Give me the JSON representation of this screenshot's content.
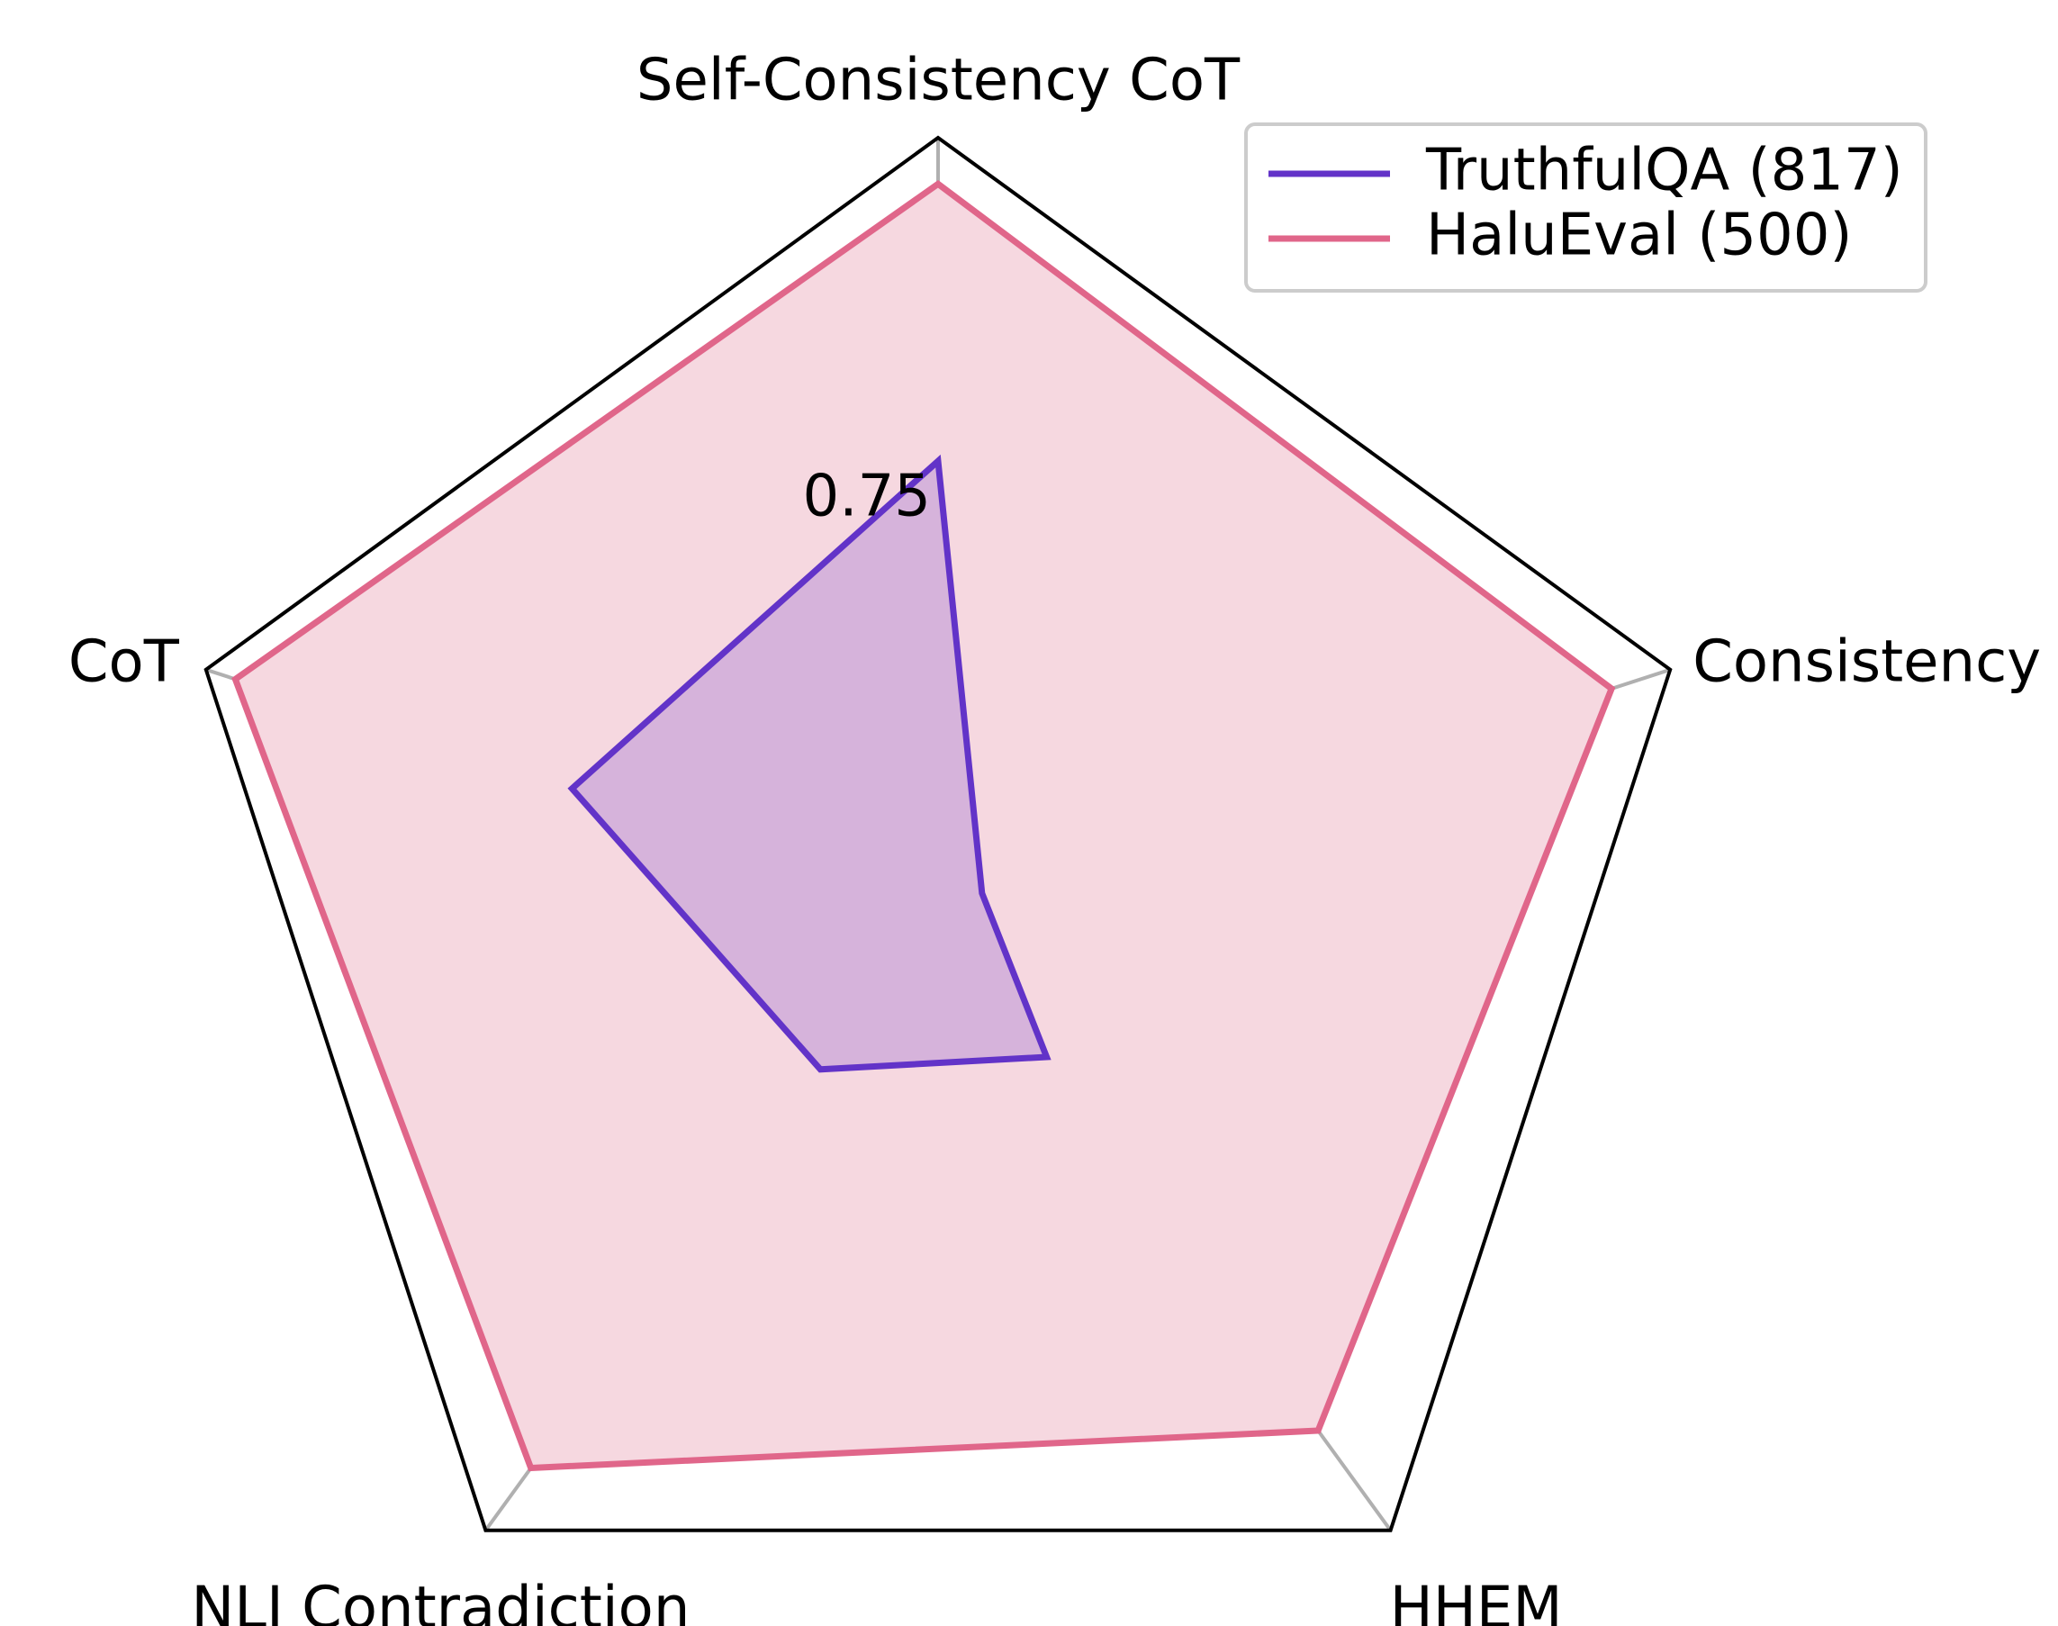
{
  "chart_data": {
    "type": "radar",
    "axes": [
      "Self-Consistency CoT",
      "Consistency",
      "HHEM",
      "NLI Contradiction",
      "CoT"
    ],
    "radial_ticks": [
      0.75
    ],
    "radial_tick_labels": [
      "0.75"
    ],
    "r_range": [
      0.5,
      1.0
    ],
    "grid": true,
    "legend_position": "upper-right",
    "series": [
      {
        "name": "TruthfulQA (817)",
        "color": "#6233c8",
        "values": [
          0.79,
          0.53,
          0.62,
          0.63,
          0.75
        ]
      },
      {
        "name": "HaluEval (500)",
        "color": "#e0668a",
        "fill": "#f6d8e0",
        "values": [
          0.97,
          0.96,
          0.92,
          0.95,
          0.98
        ]
      }
    ]
  }
}
